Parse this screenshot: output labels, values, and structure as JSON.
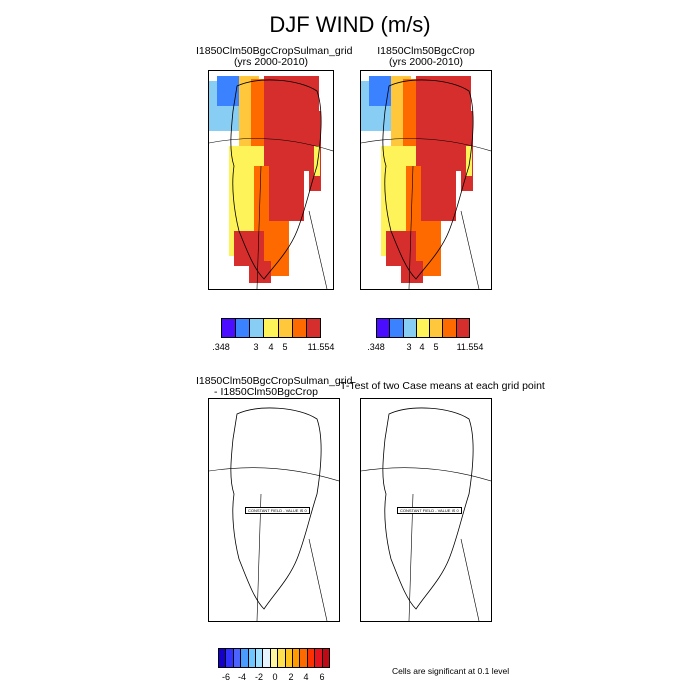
{
  "title": "DJF WIND (m/s)",
  "panels": {
    "p1": {
      "title1": "I1850Clm50BgcCropSulman_grid",
      "title2": "(yrs 2000-2010)"
    },
    "p2": {
      "title1": "I1850Clm50BgcCrop",
      "title2": "(yrs 2000-2010)"
    },
    "p3": {
      "title1": "I1850Clm50BgcCropSulman_grid",
      "title2": "- I1850Clm50BgcCrop",
      "box": "CONSTANT FIELD - VALUE IS 0"
    },
    "p4": {
      "title1": "T-Test of two Case means at each grid point",
      "box": "CONSTANT FIELD - VALUE IS 0"
    }
  },
  "colorbar_top": {
    "colors": [
      "#4b0dff",
      "#3a82ff",
      "#87cdf4",
      "#fff35a",
      "#ffc83c",
      "#ff6a00",
      "#d62d2d"
    ],
    "labels": [
      ".348",
      "3",
      "4",
      "5",
      "11.554"
    ]
  },
  "colorbar_bottom": {
    "colors": [
      "#1400c8",
      "#3232ff",
      "#4b64ff",
      "#4a9bff",
      "#6ec8ff",
      "#a0e1ff",
      "#e6f5ff",
      "#fff5a0",
      "#ffe050",
      "#ffc41e",
      "#ff9a00",
      "#ff6a00",
      "#ff3000",
      "#e6141e",
      "#be0a14"
    ],
    "labels": [
      "-6",
      "-4",
      "-2",
      "0",
      "2",
      "4",
      "6"
    ]
  },
  "note": "Cells are significant at 0.1 level"
}
